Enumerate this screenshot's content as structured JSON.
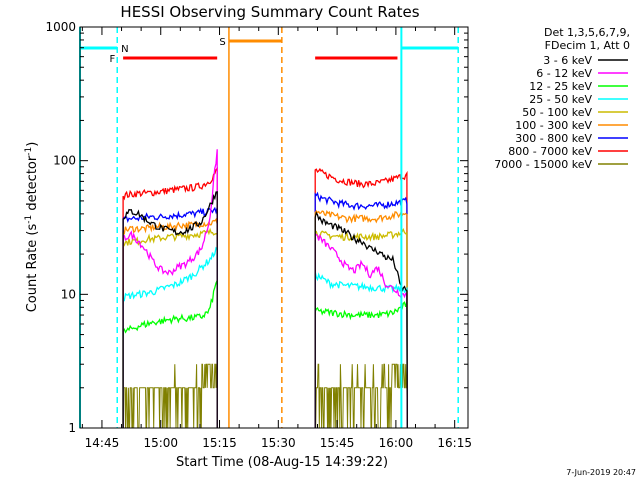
{
  "chart_data": {
    "type": "line",
    "title": "HESSI Observing Summary Count Rates",
    "xlabel": "Start Time (08-Aug-15 14:39:22)",
    "ylabel_main": "Count Rate (s",
    "ylabel_sup1": "-1",
    "ylabel_mid": " detector",
    "ylabel_sup2": "-1",
    "ylabel_end": ")",
    "yscale": "log",
    "ylim": [
      1,
      1000
    ],
    "xlim_minutes": [
      0,
      99
    ],
    "x_tick_labels": [
      "14:45",
      "15:00",
      "15:15",
      "15:30",
      "15:45",
      "16:00",
      "16:15"
    ],
    "x_tick_minutes": [
      5.6,
      20.6,
      35.6,
      50.6,
      65.6,
      80.6,
      95.6
    ],
    "y_tick_labels": [
      "1",
      "10",
      "100",
      "1000"
    ],
    "y_tick_values": [
      1,
      10,
      100,
      1000
    ],
    "legend_header": [
      "Det 1,3,5,6,7,9,",
      "FDecim 1, Att 0"
    ],
    "series": [
      {
        "name": "3 - 6 keV",
        "color": "#000000",
        "segments": [
          [
            [
              11,
              38
            ],
            [
              13,
              42
            ],
            [
              15,
              40
            ],
            [
              17,
              36
            ],
            [
              19,
              33
            ],
            [
              21,
              31
            ],
            [
              23,
              30
            ],
            [
              25,
              29
            ],
            [
              27,
              30
            ],
            [
              29,
              32
            ],
            [
              31,
              35
            ],
            [
              33,
              45
            ],
            [
              35,
              60
            ]
          ],
          [
            [
              60,
              40
            ],
            [
              62,
              35
            ],
            [
              64,
              33
            ],
            [
              66,
              31
            ],
            [
              68,
              29
            ],
            [
              70,
              26
            ],
            [
              72,
              25
            ],
            [
              74,
              22
            ],
            [
              76,
              21
            ],
            [
              78,
              19
            ],
            [
              80,
              18
            ],
            [
              82,
              11
            ],
            [
              83.5,
              11
            ]
          ]
        ]
      },
      {
        "name": "6 - 12 keV",
        "color": "#ff00ff",
        "segments": [
          [
            [
              11,
              26
            ],
            [
              13,
              28
            ],
            [
              15,
              25
            ],
            [
              17,
              21
            ],
            [
              19,
              17
            ],
            [
              21,
              15
            ],
            [
              23,
              14.5
            ],
            [
              25,
              16
            ],
            [
              27,
              17
            ],
            [
              29,
              19
            ],
            [
              31,
              22
            ],
            [
              33,
              35
            ],
            [
              35,
              120
            ]
          ],
          [
            [
              60,
              28
            ],
            [
              62,
              25
            ],
            [
              64,
              22
            ],
            [
              66,
              19
            ],
            [
              68,
              16
            ],
            [
              70,
              15
            ],
            [
              72,
              17
            ],
            [
              74,
              14
            ],
            [
              76,
              16
            ],
            [
              78,
              12
            ],
            [
              80,
              11
            ],
            [
              82,
              10
            ],
            [
              83.5,
              10
            ]
          ]
        ]
      },
      {
        "name": "12 - 25 keV",
        "color": "#00ff00",
        "segments": [
          [
            [
              11,
              5.2
            ],
            [
              13,
              5.5
            ],
            [
              15,
              5.8
            ],
            [
              17,
              6
            ],
            [
              19,
              6.2
            ],
            [
              21,
              6.3
            ],
            [
              23,
              6.5
            ],
            [
              25,
              6.6
            ],
            [
              27,
              6.6
            ],
            [
              29,
              6.7
            ],
            [
              31,
              6.8
            ],
            [
              33,
              7.5
            ],
            [
              35,
              13
            ]
          ],
          [
            [
              60,
              7.5
            ],
            [
              62,
              7.4
            ],
            [
              64,
              7.3
            ],
            [
              66,
              7.2
            ],
            [
              68,
              7.1
            ],
            [
              70,
              7
            ],
            [
              72,
              7
            ],
            [
              74,
              7
            ],
            [
              76,
              7
            ],
            [
              78,
              7.1
            ],
            [
              80,
              7.3
            ],
            [
              82,
              8
            ],
            [
              83.5,
              8.5
            ]
          ]
        ]
      },
      {
        "name": "25 - 50 keV",
        "color": "#00ffff",
        "segments": [
          [
            [
              11,
              9.5
            ],
            [
              13,
              9.8
            ],
            [
              15,
              10
            ],
            [
              17,
              10.2
            ],
            [
              19,
              10.5
            ],
            [
              21,
              11
            ],
            [
              23,
              11.5
            ],
            [
              25,
              12
            ],
            [
              27,
              13
            ],
            [
              29,
              14
            ],
            [
              31,
              16
            ],
            [
              33,
              18
            ],
            [
              35,
              22
            ]
          ],
          [
            [
              60,
              14
            ],
            [
              62,
              13
            ],
            [
              64,
              12
            ],
            [
              66,
              11.8
            ],
            [
              68,
              11.6
            ],
            [
              70,
              11.5
            ],
            [
              72,
              11.4
            ],
            [
              74,
              11.3
            ],
            [
              76,
              11.2
            ],
            [
              78,
              11.1
            ],
            [
              80,
              11
            ],
            [
              82,
              11
            ],
            [
              83.5,
              11
            ]
          ]
        ]
      },
      {
        "name": "50 - 100 keV",
        "color": "#ccbb00",
        "segments": [
          [
            [
              11,
              24
            ],
            [
              13,
              25
            ],
            [
              15,
              25
            ],
            [
              17,
              26
            ],
            [
              19,
              26
            ],
            [
              21,
              26.5
            ],
            [
              23,
              27
            ],
            [
              25,
              27
            ],
            [
              27,
              27.5
            ],
            [
              29,
              28
            ],
            [
              31,
              28.5
            ],
            [
              33,
              29
            ],
            [
              35,
              30
            ]
          ],
          [
            [
              60,
              29
            ],
            [
              62,
              28
            ],
            [
              64,
              27.5
            ],
            [
              66,
              27
            ],
            [
              68,
              27
            ],
            [
              70,
              27
            ],
            [
              72,
              27
            ],
            [
              74,
              27
            ],
            [
              76,
              27
            ],
            [
              78,
              27.5
            ],
            [
              80,
              28
            ],
            [
              82,
              29
            ],
            [
              83.5,
              30
            ]
          ]
        ]
      },
      {
        "name": "100 - 300 keV",
        "color": "#ff8c00",
        "segments": [
          [
            [
              11,
              30
            ],
            [
              13,
              31
            ],
            [
              15,
              31
            ],
            [
              17,
              31
            ],
            [
              19,
              32
            ],
            [
              21,
              32
            ],
            [
              23,
              32
            ],
            [
              25,
              33
            ],
            [
              27,
              33
            ],
            [
              29,
              33
            ],
            [
              31,
              34
            ],
            [
              33,
              34
            ],
            [
              35,
              35
            ]
          ],
          [
            [
              60,
              42
            ],
            [
              62,
              40
            ],
            [
              64,
              39
            ],
            [
              66,
              38
            ],
            [
              68,
              37
            ],
            [
              70,
              37
            ],
            [
              72,
              37
            ],
            [
              74,
              37
            ],
            [
              76,
              37
            ],
            [
              78,
              38
            ],
            [
              80,
              39
            ],
            [
              82,
              40
            ],
            [
              83.5,
              41
            ]
          ]
        ]
      },
      {
        "name": "300 - 800 keV",
        "color": "#0000ff",
        "segments": [
          [
            [
              11,
              36
            ],
            [
              13,
              37
            ],
            [
              15,
              37
            ],
            [
              17,
              38
            ],
            [
              19,
              38
            ],
            [
              21,
              38
            ],
            [
              23,
              39
            ],
            [
              25,
              39
            ],
            [
              27,
              40
            ],
            [
              29,
              40
            ],
            [
              31,
              41
            ],
            [
              33,
              42
            ],
            [
              35,
              43
            ]
          ],
          [
            [
              60,
              55
            ],
            [
              62,
              52
            ],
            [
              64,
              50
            ],
            [
              66,
              48
            ],
            [
              68,
              47
            ],
            [
              70,
              46
            ],
            [
              72,
              46
            ],
            [
              74,
              46
            ],
            [
              76,
              46
            ],
            [
              78,
              47
            ],
            [
              80,
              48
            ],
            [
              82,
              49
            ],
            [
              83.5,
              50
            ]
          ]
        ]
      },
      {
        "name": "800 - 7000 keV",
        "color": "#ff0000",
        "segments": [
          [
            [
              11,
              55
            ],
            [
              13,
              56
            ],
            [
              15,
              57
            ],
            [
              17,
              57
            ],
            [
              19,
              58
            ],
            [
              21,
              59
            ],
            [
              23,
              60
            ],
            [
              25,
              61
            ],
            [
              27,
              62
            ],
            [
              29,
              63
            ],
            [
              31,
              65
            ],
            [
              33,
              70
            ],
            [
              35,
              85
            ]
          ],
          [
            [
              60,
              85
            ],
            [
              62,
              80
            ],
            [
              64,
              76
            ],
            [
              66,
              72
            ],
            [
              68,
              70
            ],
            [
              70,
              68
            ],
            [
              72,
              67
            ],
            [
              74,
              67
            ],
            [
              76,
              68
            ],
            [
              78,
              70
            ],
            [
              80,
              73
            ],
            [
              82,
              76
            ],
            [
              83.5,
              78
            ]
          ]
        ]
      },
      {
        "name": "7000 - 15000 keV",
        "color": "#808000",
        "segments": [
          [
            [
              11,
              2
            ],
            [
              35,
              2.8
            ]
          ],
          [
            [
              60,
              2
            ],
            [
              83.5,
              2.8
            ]
          ]
        ]
      }
    ],
    "annotations": {
      "N": "N",
      "F": "F",
      "S": "S",
      "night_color": "#00ffff",
      "flag_f_color": "#ff0000",
      "flag_s_color": "#ff8c00",
      "night_bars_minutes": [
        [
          0,
          9.5
        ],
        [
          82,
          96.5
        ]
      ],
      "flag_f_bars_minutes": [
        [
          11,
          35
        ],
        [
          60,
          81
        ]
      ],
      "flag_s_bars_minutes": [
        [
          38,
          51.5
        ]
      ],
      "night_dashed_minutes": [
        9.5,
        96.5
      ],
      "night_solid_minutes": [
        0,
        82
      ],
      "s_solid_minutes": [
        38
      ],
      "s_dashed_minutes": [
        51.5
      ]
    },
    "footer_date": "7-Jun-2019 20:47",
    "grid": false
  }
}
